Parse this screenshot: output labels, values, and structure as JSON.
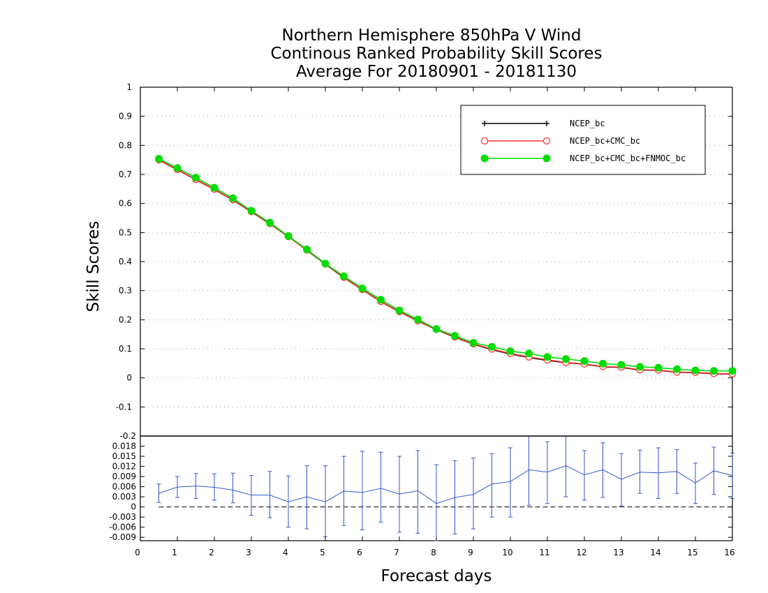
{
  "chart_data": {
    "type": "line",
    "title_lines": [
      "Northern Hemisphere 850hPa V Wind",
      "Continous Ranked Probability Skill Scores",
      "Average For 20180901 - 20181130"
    ],
    "xlabel": "Forecast days",
    "ylabel": "Skill Scores",
    "xlim": [
      0,
      16
    ],
    "x_ticks": [
      "0",
      "1",
      "2",
      "3",
      "4",
      "5",
      "6",
      "7",
      "8",
      "9",
      "10",
      "11",
      "12",
      "13",
      "14",
      "15",
      "16"
    ],
    "main_panel": {
      "ylim": [
        -0.2,
        1
      ],
      "y_ticks": [
        "-0.2",
        "-0.1",
        "0",
        "0.1",
        "0.2",
        "0.3",
        "0.4",
        "0.5",
        "0.6",
        "0.7",
        "0.8",
        "0.9",
        "1"
      ],
      "grid": true,
      "legend_position": "top-right",
      "x": [
        0.5,
        1,
        1.5,
        2,
        2.5,
        3,
        3.5,
        4,
        4.5,
        5,
        5.5,
        6,
        6.5,
        7,
        7.5,
        8,
        8.5,
        9,
        9.5,
        10,
        10.5,
        11,
        11.5,
        12,
        12.5,
        13,
        13.5,
        14,
        14.5,
        15,
        15.5,
        16
      ],
      "series": [
        {
          "name": "NCEP_bc",
          "color": "#000000",
          "marker": "plus",
          "values": [
            0.749,
            0.716,
            0.682,
            0.648,
            0.612,
            0.571,
            0.53,
            0.486,
            0.439,
            0.391,
            0.345,
            0.303,
            0.262,
            0.227,
            0.196,
            0.166,
            0.14,
            0.116,
            0.097,
            0.082,
            0.07,
            0.06,
            0.052,
            0.047,
            0.038,
            0.036,
            0.027,
            0.026,
            0.019,
            0.018,
            0.014,
            0.013
          ]
        },
        {
          "name": "NCEP_bc+CMC_bc",
          "color": "#ff3333",
          "marker": "open-circle",
          "values": [
            0.75,
            0.717,
            0.683,
            0.649,
            0.613,
            0.572,
            0.531,
            0.486,
            0.44,
            0.392,
            0.346,
            0.304,
            0.263,
            0.228,
            0.197,
            0.167,
            0.141,
            0.117,
            0.099,
            0.084,
            0.072,
            0.062,
            0.053,
            0.048,
            0.039,
            0.037,
            0.028,
            0.027,
            0.02,
            0.019,
            0.015,
            0.014
          ]
        },
        {
          "name": "NCEP_bc+CMC_bc+FNMOC_bc",
          "color": "#00dd00",
          "marker": "filled-circle",
          "values": [
            0.754,
            0.722,
            0.689,
            0.654,
            0.618,
            0.575,
            0.534,
            0.488,
            0.442,
            0.393,
            0.35,
            0.308,
            0.269,
            0.232,
            0.201,
            0.168,
            0.145,
            0.121,
            0.107,
            0.092,
            0.084,
            0.072,
            0.065,
            0.058,
            0.049,
            0.045,
            0.038,
            0.035,
            0.03,
            0.026,
            0.024,
            0.024
          ]
        }
      ]
    },
    "diff_panel": {
      "ylim": [
        -0.01,
        0.021
      ],
      "y_ticks": [
        "-0.009",
        "-0.006",
        "-0.003",
        "0",
        "0.003",
        "0.006",
        "0.009",
        "0.012",
        "0.015",
        "0.018"
      ],
      "top_label": "-0.2",
      "color": "#3355cc",
      "x": [
        0.5,
        1,
        1.5,
        2,
        2.5,
        3,
        3.5,
        4,
        4.5,
        5,
        5.5,
        6,
        6.5,
        7,
        7.5,
        8,
        8.5,
        9,
        9.5,
        10,
        10.5,
        11,
        11.5,
        12,
        12.5,
        13,
        13.5,
        14,
        14.5,
        15,
        15.5,
        16
      ],
      "values": [
        0.004,
        0.0059,
        0.0062,
        0.0058,
        0.005,
        0.0035,
        0.0035,
        0.0015,
        0.003,
        0.0015,
        0.0047,
        0.0043,
        0.0055,
        0.0038,
        0.0048,
        0.001,
        0.0028,
        0.0037,
        0.0068,
        0.0075,
        0.011,
        0.0103,
        0.0122,
        0.0095,
        0.011,
        0.0082,
        0.0103,
        0.0101,
        0.0105,
        0.0071,
        0.0107,
        0.0093
      ],
      "err_low": [
        0.0013,
        0.0028,
        0.0025,
        0.002,
        0.0012,
        -0.0025,
        -0.0032,
        -0.006,
        -0.0065,
        -0.0088,
        -0.0055,
        -0.0068,
        -0.0045,
        -0.0075,
        -0.0078,
        -0.01,
        -0.008,
        -0.0065,
        -0.003,
        -0.003,
        0.0005,
        0.001,
        0.003,
        0.002,
        0.0028,
        0.0003,
        0.004,
        0.0025,
        0.004,
        0.001,
        0.0037,
        0.0025
      ],
      "err_high": [
        0.0068,
        0.009,
        0.0099,
        0.0098,
        0.01,
        0.0093,
        0.0105,
        0.0092,
        0.0122,
        0.0122,
        0.015,
        0.0165,
        0.0162,
        0.015,
        0.0167,
        0.0125,
        0.0137,
        0.0145,
        0.0158,
        0.0175,
        0.021,
        0.0193,
        0.021,
        0.0167,
        0.019,
        0.0158,
        0.0168,
        0.0175,
        0.017,
        0.013,
        0.0177,
        0.016
      ],
      "zero_line": 0
    }
  }
}
